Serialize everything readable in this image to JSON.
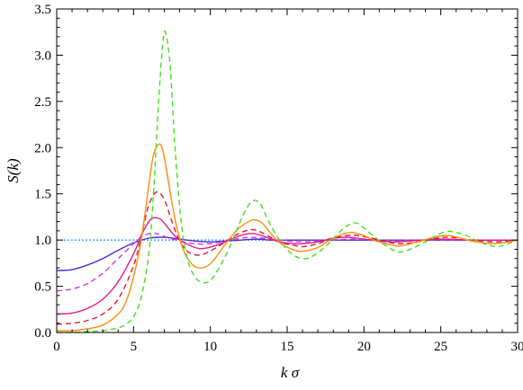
{
  "chart_data": {
    "type": "line",
    "title": "",
    "xlabel": "k σ",
    "ylabel": "S(k)",
    "xlim": [
      0,
      30
    ],
    "ylim": [
      0,
      3.5
    ],
    "x_ticks": [
      0,
      5,
      10,
      15,
      20,
      25,
      30
    ],
    "x_tick_labels": [
      "0",
      "5",
      "10",
      "15",
      "20",
      "25",
      "30"
    ],
    "y_ticks": [
      0,
      0.5,
      1.0,
      1.5,
      2.0,
      2.5,
      3.0,
      3.5
    ],
    "y_tick_labels": [
      "0.0",
      "0.5",
      "1.0",
      "1.5",
      "2.0",
      "2.5",
      "3.0",
      "3.5"
    ],
    "grid": false,
    "legend": "none",
    "series": [
      {
        "color": "#1f8fff",
        "dash": "dotted",
        "x": [
          0,
          5,
          10,
          15,
          20,
          25,
          30
        ],
        "y": [
          1.0,
          1.0,
          1.0,
          1.0,
          1.0,
          1.0,
          1.0
        ]
      },
      {
        "color": "#4b2bd6",
        "dash": "solid",
        "x": [
          0,
          1,
          2,
          3,
          4,
          5,
          6,
          7,
          8,
          9,
          10,
          11,
          12,
          13,
          14,
          15,
          17,
          20,
          25,
          30
        ],
        "y": [
          0.67,
          0.68,
          0.73,
          0.8,
          0.89,
          0.97,
          1.02,
          1.03,
          1.01,
          0.99,
          0.98,
          0.99,
          1.0,
          1.01,
          1.0,
          1.0,
          1.0,
          1.0,
          1.0,
          1.0
        ]
      },
      {
        "color": "#c43ce0",
        "dash": "dashed",
        "x": [
          0,
          1,
          2,
          3,
          4,
          5,
          5.5,
          6,
          6.5,
          7,
          8,
          9,
          10,
          11,
          12,
          12.8,
          14,
          15,
          16,
          17,
          19,
          21,
          22,
          23,
          25,
          27,
          30
        ],
        "y": [
          0.45,
          0.47,
          0.53,
          0.64,
          0.8,
          0.96,
          1.03,
          1.07,
          1.07,
          1.04,
          0.99,
          0.96,
          0.96,
          0.99,
          1.02,
          1.03,
          1.01,
          0.99,
          0.98,
          0.99,
          1.01,
          1.0,
          0.99,
          1.0,
          1.0,
          1.0,
          1.0
        ]
      },
      {
        "color": "#e6188c",
        "dash": "solid",
        "x": [
          0,
          1,
          2,
          3,
          4,
          5,
          5.5,
          6,
          6.3,
          6.8,
          7.5,
          8,
          9,
          9.6,
          10.5,
          11.5,
          12.2,
          12.8,
          13.5,
          14.5,
          15.5,
          16,
          17,
          18,
          19,
          20,
          21,
          22,
          23,
          25,
          27,
          30
        ],
        "y": [
          0.2,
          0.21,
          0.26,
          0.36,
          0.55,
          0.85,
          1.05,
          1.2,
          1.24,
          1.22,
          1.08,
          1.0,
          0.92,
          0.91,
          0.95,
          1.02,
          1.06,
          1.07,
          1.04,
          0.98,
          0.96,
          0.96,
          0.98,
          1.02,
          1.03,
          1.01,
          0.99,
          0.98,
          0.99,
          1.01,
          1.0,
          1.0
        ]
      },
      {
        "color": "#d41e2e",
        "dash": "dashed",
        "x": [
          0,
          1,
          2,
          3,
          4,
          5,
          5.5,
          6,
          6.5,
          7,
          7.5,
          8,
          8.5,
          9,
          9.6,
          10.5,
          11.5,
          12.3,
          12.9,
          13.6,
          14.5,
          15.5,
          16.1,
          17,
          18,
          19,
          19.5,
          20.5,
          21.5,
          22.4,
          23.5,
          25.3,
          27,
          28.5,
          30
        ],
        "y": [
          0.09,
          0.1,
          0.13,
          0.2,
          0.36,
          0.72,
          1.04,
          1.38,
          1.52,
          1.44,
          1.2,
          0.99,
          0.88,
          0.84,
          0.85,
          0.93,
          1.04,
          1.1,
          1.11,
          1.06,
          0.98,
          0.94,
          0.93,
          0.96,
          1.02,
          1.05,
          1.05,
          1.02,
          0.98,
          0.96,
          0.98,
          1.03,
          1.0,
          0.98,
          1.0
        ]
      },
      {
        "color": "#ff8c0a",
        "dash": "solid",
        "x": [
          0,
          1,
          2,
          3,
          4,
          4.5,
          5,
          5.5,
          6,
          6.3,
          6.7,
          7.0,
          7.4,
          7.8,
          8.3,
          8.8,
          9.2,
          9.7,
          10.2,
          11,
          11.8,
          12.5,
          12.9,
          13.4,
          14,
          14.6,
          15.5,
          16.1,
          17,
          18,
          19,
          19.8,
          20.8,
          22,
          22.5,
          23.5,
          25.3,
          27,
          28.5,
          30
        ],
        "y": [
          0.02,
          0.02,
          0.04,
          0.08,
          0.2,
          0.33,
          0.6,
          1.0,
          1.6,
          1.92,
          2.04,
          1.9,
          1.5,
          1.15,
          0.87,
          0.74,
          0.7,
          0.71,
          0.78,
          0.96,
          1.12,
          1.2,
          1.22,
          1.18,
          1.06,
          0.96,
          0.89,
          0.88,
          0.92,
          1.02,
          1.08,
          1.06,
          0.99,
          0.94,
          0.94,
          0.98,
          1.05,
          0.99,
          0.96,
          1.0
        ]
      },
      {
        "color": "#43e01a",
        "dash": "dashed",
        "x": [
          0,
          1,
          2,
          3,
          4,
          4.5,
          5,
          5.5,
          6,
          6.3,
          6.6,
          6.9,
          7.1,
          7.4,
          7.7,
          8.1,
          8.5,
          9,
          9.5,
          10,
          10.5,
          11.2,
          12,
          12.5,
          12.9,
          13.3,
          13.8,
          14.5,
          15.3,
          16,
          16.6,
          17.5,
          18.5,
          19.2,
          19.7,
          20.5,
          21.5,
          22.3,
          23,
          24,
          25.3,
          26.5,
          27.5,
          28.5,
          29.2,
          30
        ],
        "y": [
          0.0,
          0.0,
          0.01,
          0.02,
          0.05,
          0.09,
          0.17,
          0.38,
          0.86,
          1.5,
          2.4,
          3.12,
          3.24,
          2.85,
          2.0,
          1.2,
          0.8,
          0.6,
          0.54,
          0.56,
          0.68,
          0.9,
          1.22,
          1.38,
          1.43,
          1.38,
          1.2,
          1.0,
          0.85,
          0.8,
          0.82,
          0.93,
          1.1,
          1.18,
          1.17,
          1.06,
          0.93,
          0.87,
          0.9,
          0.98,
          1.09,
          1.06,
          0.98,
          0.93,
          0.95,
          1.0
        ]
      }
    ]
  }
}
